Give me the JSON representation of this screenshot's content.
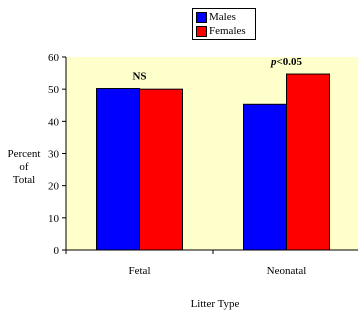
{
  "chart_data": {
    "type": "bar",
    "categories": [
      "Fetal",
      "Neonatal"
    ],
    "series": [
      {
        "name": "Males",
        "values": [
          50.2,
          45.3
        ],
        "color": "#0000ff"
      },
      {
        "name": "Females",
        "values": [
          50.0,
          54.7
        ],
        "color": "#ff0000"
      }
    ],
    "annotations": [
      {
        "category": "Fetal",
        "text": "NS"
      },
      {
        "category": "Neonatal",
        "text": "p<0.05",
        "p": "p",
        "rest": "<0.05"
      }
    ],
    "xlabel": "Litter Type",
    "ylabel": [
      "Percent",
      "of",
      "Total"
    ],
    "ylim": [
      0,
      60
    ],
    "yticks": [
      0,
      10,
      20,
      30,
      40,
      50,
      60
    ],
    "plot_background": "#ffffcc",
    "grid": false,
    "legend_position": "top-center"
  }
}
